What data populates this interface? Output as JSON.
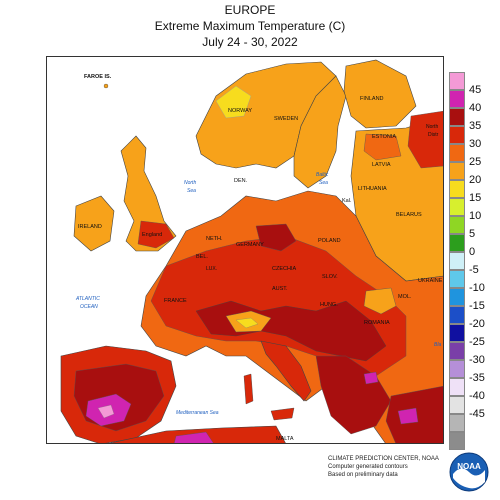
{
  "header": {
    "line1": "EUROPE",
    "line2": "Extreme Maximum Temperature (C)",
    "line3": "July 24 - 30, 2022"
  },
  "map_labels": {
    "faroe": "FAROE IS.",
    "norway": "NORWAY",
    "sweden": "SWEDEN",
    "finland": "FINLAND",
    "estonia": "ESTONIA",
    "northwest": "North",
    "northwest2": "Distr",
    "latvia": "LATVIA",
    "lithuania": "LITHUANIA",
    "kal": "Kal.",
    "belarus": "BELARUS",
    "denmark": "DEN.",
    "north_sea_1": "North",
    "north_sea_2": "Sea",
    "baltic_1": "Baltic",
    "baltic_2": "Sea",
    "ireland": "IRELAND",
    "england": "England",
    "neth": "NETH.",
    "germany": "GERMANY",
    "poland": "POLAND",
    "bel": "BEL.",
    "czechia": "CZECHIA",
    "lux": "LUX.",
    "slov": "SLOV.",
    "austria": "AUST.",
    "ukraine": "UKRAINE",
    "mol": "MOL.",
    "france": "FRANCE",
    "hung": "HUNG.",
    "romania": "ROMANIA",
    "atlantic_1": "ATLANTIC",
    "atlantic_2": "OCEAN",
    "mediterranean": "Mediterranean Sea",
    "malta": "MALTA",
    "black_sea": "Bla"
  },
  "legend": {
    "ticks": [
      "45",
      "40",
      "35",
      "30",
      "25",
      "20",
      "15",
      "10",
      "5",
      "0",
      "-5",
      "-10",
      "-15",
      "-20",
      "-25",
      "-30",
      "-35",
      "-40",
      "-45"
    ],
    "colors": [
      "#f49ad6",
      "#d024b0",
      "#a80f0f",
      "#d8280a",
      "#f06812",
      "#f7a21a",
      "#f7dc1e",
      "#d7ef2e",
      "#8fd624",
      "#2c9e1d",
      "#cff0f7",
      "#5fc8ea",
      "#1f94de",
      "#1c4fc8",
      "#1010a0",
      "#7a3fa8",
      "#b58fd8",
      "#efe1f7",
      "#e3e3e3",
      "#b5b5b5",
      "#8c8c8c"
    ]
  },
  "credits": {
    "line1": "CLIMATE PREDICTION CENTER, NOAA",
    "line2": "Computer generated contours",
    "line3": "Based on preliminary data"
  },
  "logo": {
    "text": "NOAA",
    "icon": "noaa-logo-icon"
  }
}
